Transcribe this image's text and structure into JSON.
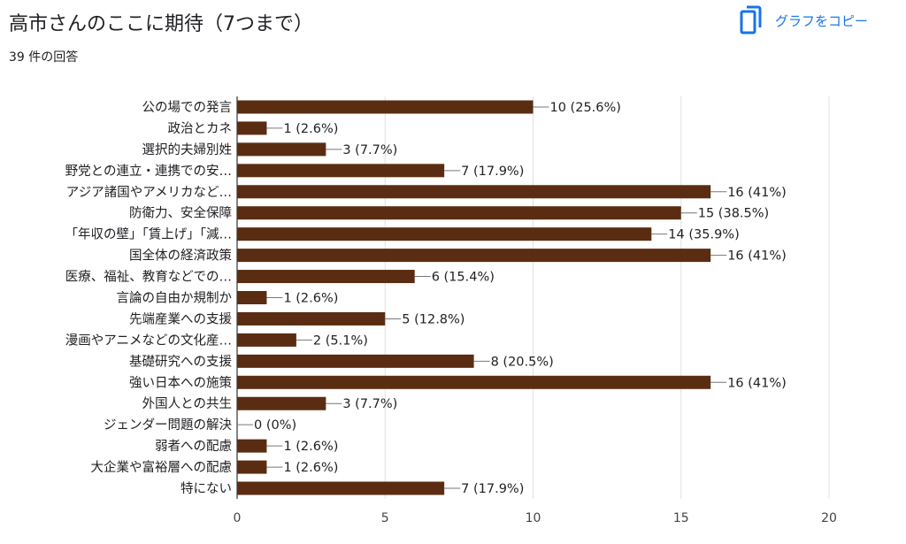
{
  "title": "高市さんのここに期待（7つまで）",
  "subtitle": "39 件の回答",
  "copy_button": {
    "label": "グラフをコピー",
    "icon": "copy-icon"
  },
  "colors": {
    "bar": "#5a2d12",
    "accent": "#1a73e8",
    "grid": "#e0e0e0"
  },
  "chart_data": {
    "type": "bar",
    "orientation": "horizontal",
    "categories": [
      "公の場での発言",
      "政治とカネ",
      "選択的夫婦別姓",
      "野党との連立・連携での安…",
      "アジア諸国やアメリカなど…",
      "防衛力、安全保障",
      "「年収の壁」「賃上げ」「減…",
      "国全体の経済政策",
      "医療、福祉、教育などでの…",
      "言論の自由か規制か",
      "先端産業への支援",
      "漫画やアニメなどの文化産…",
      "基礎研究への支援",
      "強い日本への施策",
      "外国人との共生",
      "ジェンダー問題の解決",
      "弱者への配慮",
      "大企業や富裕層への配慮",
      "特にない"
    ],
    "values": [
      10,
      1,
      3,
      7,
      16,
      15,
      14,
      16,
      6,
      1,
      5,
      2,
      8,
      16,
      3,
      0,
      1,
      1,
      7
    ],
    "value_labels": [
      "10 (25.6%)",
      "1 (2.6%)",
      "3 (7.7%)",
      "7 (17.9%)",
      "16 (41%)",
      "15 (38.5%)",
      "14 (35.9%)",
      "16 (41%)",
      "6 (15.4%)",
      "1 (2.6%)",
      "5 (12.8%)",
      "2 (5.1%)",
      "8 (20.5%)",
      "16 (41%)",
      "3 (7.7%)",
      "0 (0%)",
      "1 (2.6%)",
      "1 (2.6%)",
      "7 (17.9%)"
    ],
    "xlim": [
      0,
      20
    ],
    "xticks": [
      0,
      5,
      10,
      15,
      20
    ],
    "grid": true
  }
}
